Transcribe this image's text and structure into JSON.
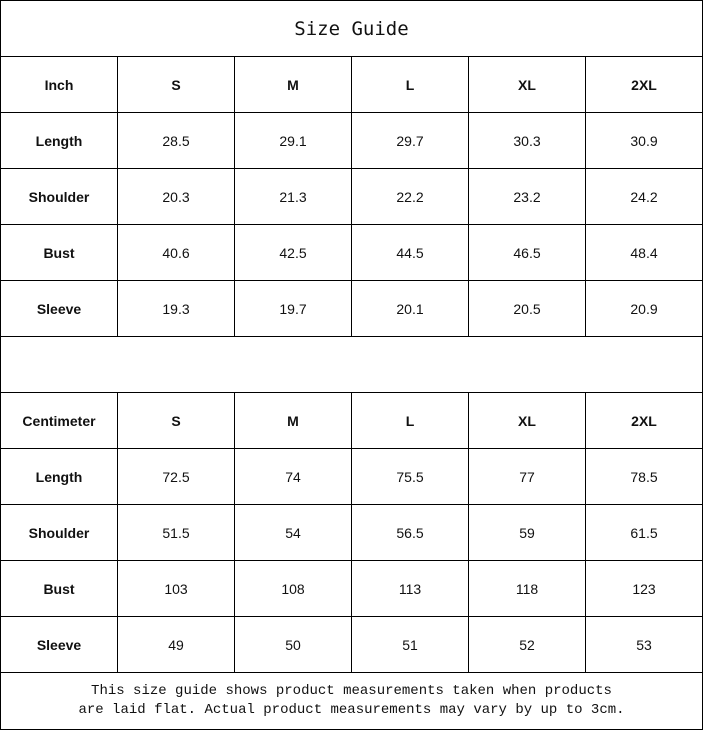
{
  "title": "Size Guide",
  "inch": {
    "header": [
      "Inch",
      "S",
      "M",
      "L",
      "XL",
      "2XL"
    ],
    "rows": [
      [
        "Length",
        "28.5",
        "29.1",
        "29.7",
        "30.3",
        "30.9"
      ],
      [
        "Shoulder",
        "20.3",
        "21.3",
        "22.2",
        "23.2",
        "24.2"
      ],
      [
        "Bust",
        "40.6",
        "42.5",
        "44.5",
        "46.5",
        "48.4"
      ],
      [
        "Sleeve",
        "19.3",
        "19.7",
        "20.1",
        "20.5",
        "20.9"
      ]
    ]
  },
  "cm": {
    "header": [
      "Centimeter",
      "S",
      "M",
      "L",
      "XL",
      "2XL"
    ],
    "rows": [
      [
        "Length",
        "72.5",
        "74",
        "75.5",
        "77",
        "78.5"
      ],
      [
        "Shoulder",
        "51.5",
        "54",
        "56.5",
        "59",
        "61.5"
      ],
      [
        "Bust",
        "103",
        "108",
        "113",
        "118",
        "123"
      ],
      [
        "Sleeve",
        "49",
        "50",
        "51",
        "52",
        "53"
      ]
    ]
  },
  "note": {
    "line1": "This size guide shows product measurements taken when products",
    "line2": "are laid flat. Actual product measurements may vary by up to 3cm."
  }
}
